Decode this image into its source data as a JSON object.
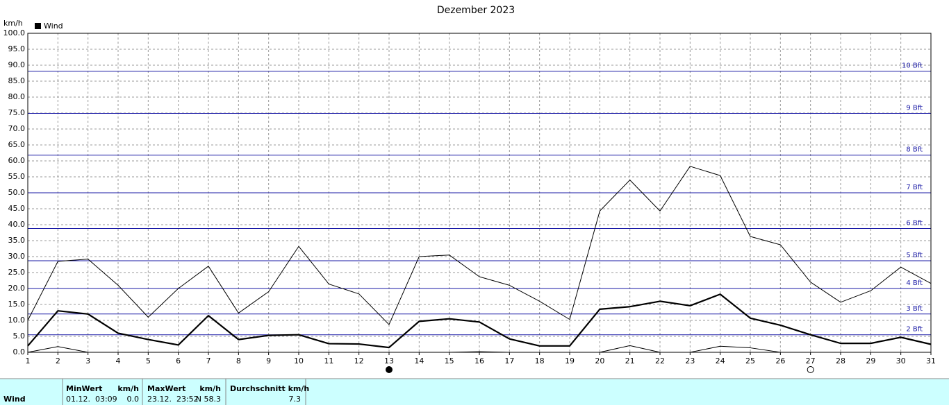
{
  "chart_data": {
    "type": "line",
    "title": "Dezember 2023",
    "y_label": "km/h",
    "x": [
      1,
      2,
      3,
      4,
      5,
      6,
      7,
      8,
      9,
      10,
      11,
      12,
      13,
      14,
      15,
      16,
      17,
      18,
      19,
      20,
      21,
      22,
      23,
      24,
      25,
      26,
      27,
      28,
      29,
      30,
      31
    ],
    "xlim": [
      1,
      31
    ],
    "xticks": [
      1,
      2,
      3,
      4,
      5,
      6,
      7,
      8,
      9,
      10,
      11,
      12,
      13,
      14,
      15,
      16,
      17,
      18,
      19,
      20,
      21,
      22,
      23,
      24,
      25,
      26,
      27,
      28,
      29,
      30,
      31
    ],
    "ylim": [
      0,
      100
    ],
    "yticks": [
      {
        "value": 0,
        "label": "0.0"
      },
      {
        "value": 5,
        "label": "5.0"
      },
      {
        "value": 10,
        "label": "10.0"
      },
      {
        "value": 15,
        "label": "15.0"
      },
      {
        "value": 20,
        "label": "20.0"
      },
      {
        "value": 25,
        "label": "25.0"
      },
      {
        "value": 30,
        "label": "30.0"
      },
      {
        "value": 35,
        "label": "35.0"
      },
      {
        "value": 40,
        "label": "40.0"
      },
      {
        "value": 45,
        "label": "45.0"
      },
      {
        "value": 50,
        "label": "50.0"
      },
      {
        "value": 55,
        "label": "55.0"
      },
      {
        "value": 60,
        "label": "60.0"
      },
      {
        "value": 65,
        "label": "65.0"
      },
      {
        "value": 70,
        "label": "70.0"
      },
      {
        "value": 75,
        "label": "75.0"
      },
      {
        "value": 80,
        "label": "80.0"
      },
      {
        "value": 85,
        "label": "85.0"
      },
      {
        "value": 90,
        "label": "90.0"
      },
      {
        "value": 95,
        "label": "95.0"
      },
      {
        "value": 100,
        "label": "100.0"
      }
    ],
    "grid": true,
    "series": [
      {
        "name": "Wind",
        "color": "#000000",
        "width": 2.2,
        "values": [
          2.0,
          13.0,
          12.0,
          6.0,
          4.0,
          2.3,
          11.5,
          4.0,
          5.3,
          5.5,
          2.7,
          2.6,
          1.5,
          9.7,
          10.5,
          9.5,
          4.2,
          2.0,
          2.0,
          13.5,
          14.3,
          16.0,
          14.6,
          18.2,
          10.7,
          8.5,
          5.5,
          2.8,
          2.8,
          4.7,
          2.5
        ]
      },
      {
        "color": "#000000",
        "width": 1,
        "values": [
          10.0,
          28.5,
          29.2,
          21.0,
          11.0,
          20.0,
          27.0,
          12.3,
          19.0,
          33.2,
          21.4,
          18.3,
          8.7,
          30.0,
          30.5,
          23.7,
          21.0,
          16.0,
          10.3,
          44.3,
          54.0,
          44.3,
          58.3,
          55.4,
          36.3,
          33.7,
          22.0,
          15.7,
          19.3,
          26.7,
          21.6
        ]
      },
      {
        "color": "#000000",
        "width": 1,
        "values": [
          0.0,
          1.8,
          0.0,
          0.0,
          0.0,
          0.0,
          0.0,
          0.0,
          0.0,
          0.0,
          0.0,
          0.0,
          0.0,
          0.0,
          0.0,
          0.2,
          0.0,
          0.0,
          0.0,
          0.0,
          2.1,
          0.0,
          0.0,
          1.9,
          1.4,
          0.0,
          0.0,
          0.0,
          0.0,
          0.0,
          0.0
        ]
      }
    ],
    "reference_color": "#1a1aa6",
    "reference_lines": [
      {
        "value": 5.5,
        "label": "2 Bft"
      },
      {
        "value": 12.0,
        "label": "3 Bft"
      },
      {
        "value": 20.0,
        "label": "4 Bft"
      },
      {
        "value": 28.7,
        "label": "5 Bft"
      },
      {
        "value": 38.8,
        "label": "6 Bft"
      },
      {
        "value": 50.0,
        "label": "7 Bft"
      },
      {
        "value": 61.8,
        "label": "8 Bft"
      },
      {
        "value": 74.9,
        "label": "9 Bft"
      },
      {
        "value": 88.1,
        "label": "10 Bft"
      }
    ],
    "moon_phases": [
      {
        "x": 13,
        "filled": true
      },
      {
        "x": 27,
        "filled": false
      }
    ]
  },
  "footer": {
    "row_label": "Wind",
    "headers": [
      "MinWert",
      "km/h",
      "MaxWert",
      "km/h",
      "Durchschnitt km/h"
    ],
    "values": [
      "01.12.  03:09",
      "0.0",
      "23.12.  23:52",
      "N 58.3",
      "7.3"
    ]
  }
}
